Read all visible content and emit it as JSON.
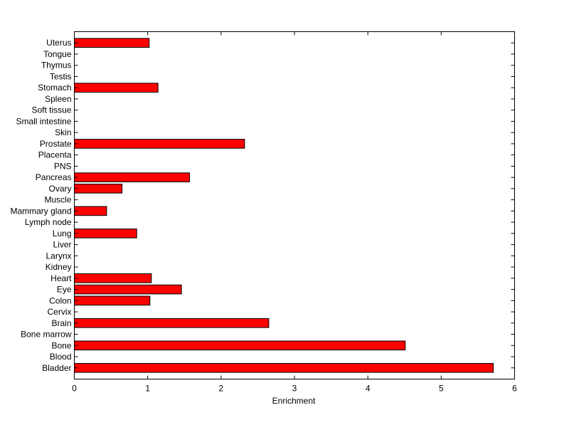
{
  "chart_data": {
    "type": "bar",
    "orientation": "horizontal",
    "title": "",
    "xlabel": "Enrichment",
    "ylabel": "",
    "xlim": [
      0,
      6
    ],
    "xticks": [
      0,
      1,
      2,
      3,
      4,
      5,
      6
    ],
    "grid": false,
    "bar_color": "#ff0000",
    "edge_color": "#000000",
    "categories": [
      "Bladder",
      "Blood",
      "Bone",
      "Bone marrow",
      "Brain",
      "Cervix",
      "Colon",
      "Eye",
      "Heart",
      "Kidney",
      "Larynx",
      "Liver",
      "Lung",
      "Lymph node",
      "Mammary gland",
      "Muscle",
      "Ovary",
      "Pancreas",
      "PNS",
      "Placenta",
      "Prostate",
      "Skin",
      "Small intestine",
      "Soft tissue",
      "Spleen",
      "Stomach",
      "Testis",
      "Thymus",
      "Tongue",
      "Uterus"
    ],
    "values": [
      5.71,
      0,
      4.51,
      0,
      2.65,
      0,
      1.03,
      1.46,
      1.05,
      0,
      0,
      0,
      0.85,
      0,
      0.44,
      0,
      0.65,
      1.57,
      0,
      0,
      2.32,
      0,
      0,
      0,
      0,
      1.14,
      0,
      0,
      0,
      1.02
    ]
  }
}
